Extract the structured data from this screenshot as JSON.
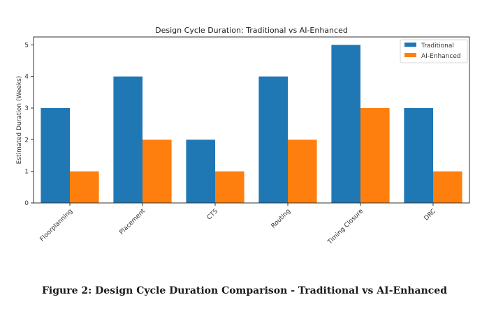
{
  "chart_data": {
    "type": "bar",
    "title": "Design Cycle Duration: Traditional vs AI-Enhanced",
    "xlabel": "",
    "ylabel": "Estimated Duration (Weeks)",
    "categories": [
      "Floorplanning",
      "Placement",
      "CTS",
      "Routing",
      "Timing Closure",
      "DRC"
    ],
    "series": [
      {
        "name": "Traditional",
        "color": "#1f77b4",
        "values": [
          3,
          4,
          2,
          4,
          5,
          3
        ]
      },
      {
        "name": "AI-Enhanced",
        "color": "#ff7f0e",
        "values": [
          1,
          2,
          1,
          2,
          3,
          1
        ]
      }
    ],
    "ylim": [
      0,
      5.25
    ],
    "yticks": [
      0,
      1,
      2,
      3,
      4,
      5
    ],
    "grid": false,
    "legend_position": "top-right",
    "xtick_rotation_deg": 45
  },
  "caption": "Figure 2: Design Cycle Duration Comparison - Traditional vs AI-Enhanced"
}
